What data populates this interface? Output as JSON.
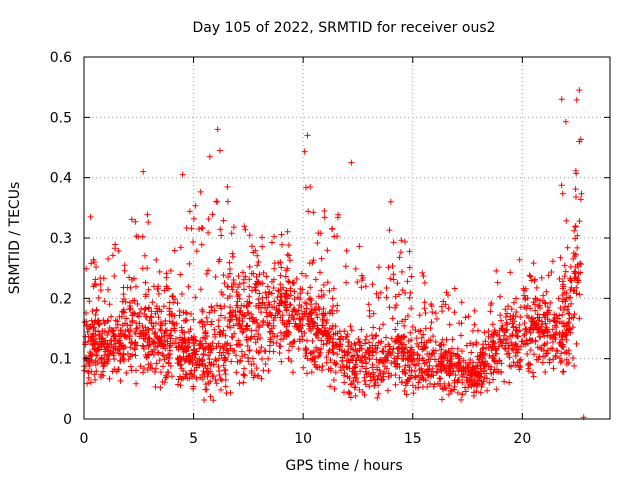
{
  "chart_data": {
    "type": "scatter",
    "title": "Day 105 of 2022, SRMTID for receiver ous2",
    "xlabel": "GPS time / hours",
    "ylabel": "SRMTID / TECUs",
    "xlim": [
      0,
      24
    ],
    "ylim": [
      0,
      0.6
    ],
    "x_ticks": [
      0,
      5,
      10,
      15,
      20
    ],
    "y_ticks": [
      0,
      0.1,
      0.2,
      0.3,
      0.4,
      0.5,
      0.6
    ],
    "x_tick_labels": [
      "0",
      "5",
      "10",
      "15",
      "20"
    ],
    "y_tick_labels": [
      "0",
      "0.1",
      "0.2",
      "0.3",
      "0.4",
      "0.5",
      "0.6"
    ],
    "grid": true,
    "marker": "+",
    "color": "#ff0000",
    "envelope": {
      "description": "approximate spread of the dense scatter (min/typical/max SRMTID per hour)",
      "hours": [
        0,
        1,
        2,
        3,
        4,
        5,
        6,
        7,
        8,
        9,
        10,
        11,
        12,
        13,
        14,
        15,
        16,
        17,
        18,
        19,
        20,
        21,
        22,
        22.7
      ],
      "low": [
        0.05,
        0.05,
        0.06,
        0.05,
        0.04,
        0.03,
        0.03,
        0.04,
        0.06,
        0.07,
        0.07,
        0.06,
        0.03,
        0.03,
        0.04,
        0.04,
        0.03,
        0.03,
        0.03,
        0.05,
        0.07,
        0.07,
        0.07,
        0.1
      ],
      "typical": [
        0.12,
        0.11,
        0.14,
        0.13,
        0.12,
        0.1,
        0.12,
        0.15,
        0.16,
        0.18,
        0.16,
        0.14,
        0.1,
        0.09,
        0.1,
        0.1,
        0.09,
        0.08,
        0.07,
        0.12,
        0.15,
        0.14,
        0.15,
        0.25
      ],
      "high": [
        0.27,
        0.26,
        0.33,
        0.35,
        0.27,
        0.38,
        0.46,
        0.33,
        0.3,
        0.34,
        0.45,
        0.37,
        0.4,
        0.22,
        0.33,
        0.28,
        0.22,
        0.22,
        0.18,
        0.27,
        0.27,
        0.26,
        0.53,
        0.54
      ]
    },
    "notable_points": [
      {
        "x": 0.3,
        "y": 0.335
      },
      {
        "x": 2.7,
        "y": 0.41
      },
      {
        "x": 4.5,
        "y": 0.405
      },
      {
        "x": 6.1,
        "y": 0.48
      },
      {
        "x": 6.2,
        "y": 0.445
      },
      {
        "x": 10.2,
        "y": 0.47
      },
      {
        "x": 12.2,
        "y": 0.425
      },
      {
        "x": 14.0,
        "y": 0.36
      },
      {
        "x": 21.8,
        "y": 0.53
      },
      {
        "x": 22.6,
        "y": 0.545
      },
      {
        "x": 22.6,
        "y": 0.46
      },
      {
        "x": 22.8,
        "y": 0.003
      }
    ]
  }
}
